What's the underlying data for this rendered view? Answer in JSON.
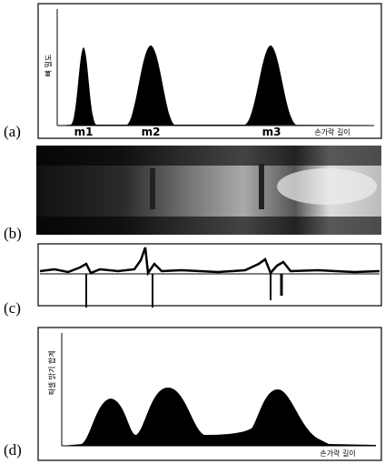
{
  "panels": [
    {
      "label": "(a)",
      "y_axis": "뼈 밀도",
      "x_axis": "손가락 길이",
      "peaks": [
        "m1",
        "m2",
        "m3"
      ]
    },
    {
      "label": "(b)"
    },
    {
      "label": "(c)"
    },
    {
      "label": "(d)",
      "y_axis": "픽셀 밝기 합계",
      "x_axis": "손가락 길이"
    }
  ]
}
